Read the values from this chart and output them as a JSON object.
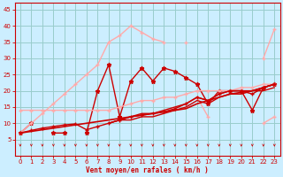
{
  "xlabel": "Vent moyen/en rafales ( km/h )",
  "bg_color": "#cceeff",
  "grid_color": "#99cccc",
  "line_color_dark": "#cc0000",
  "line_color_med": "#ff6666",
  "line_color_light": "#ffaaaa",
  "x": [
    0,
    1,
    2,
    3,
    4,
    5,
    6,
    7,
    8,
    9,
    10,
    11,
    12,
    13,
    14,
    15,
    16,
    17,
    18,
    19,
    20,
    21,
    22,
    23
  ],
  "ylim": [
    0,
    47
  ],
  "xlim": [
    -0.5,
    23.5
  ],
  "yticks": [
    5,
    10,
    15,
    20,
    25,
    30,
    35,
    40,
    45
  ],
  "xticks": [
    0,
    1,
    2,
    3,
    4,
    5,
    6,
    7,
    8,
    9,
    10,
    11,
    12,
    13,
    14,
    15,
    16,
    17,
    18,
    19,
    20,
    21,
    22,
    23
  ],
  "series": [
    {
      "y": [
        7,
        10,
        null,
        7,
        7,
        null,
        7,
        20,
        28,
        12,
        23,
        27,
        23,
        27,
        26,
        24,
        22,
        16,
        20,
        20,
        20,
        14,
        21,
        22
      ],
      "color": "#cc0000",
      "lw": 1.0,
      "marker": "*",
      "ms": 3.5
    },
    {
      "y": [
        7,
        10,
        13,
        16,
        19,
        22,
        25,
        28,
        35,
        37,
        40,
        38,
        36,
        35,
        null,
        null,
        null,
        null,
        null,
        null,
        null,
        null,
        null,
        null
      ],
      "color": "#ffaaaa",
      "lw": 1.0,
      "marker": "+",
      "ms": 3
    },
    {
      "y": [
        null,
        null,
        null,
        null,
        null,
        null,
        null,
        null,
        null,
        null,
        null,
        null,
        null,
        null,
        null,
        35,
        null,
        null,
        null,
        null,
        null,
        null,
        30,
        39
      ],
      "color": "#ffaaaa",
      "lw": 1.0,
      "marker": "+",
      "ms": 3
    },
    {
      "y": [
        14,
        14,
        14,
        14,
        14,
        14,
        14,
        14,
        14,
        15,
        16,
        17,
        17,
        18,
        18,
        19,
        20,
        20,
        20,
        20,
        21,
        21,
        22,
        22
      ],
      "color": "#ffaaaa",
      "lw": 1.0,
      "marker": "+",
      "ms": 3
    },
    {
      "y": [
        null,
        null,
        null,
        null,
        null,
        null,
        null,
        null,
        null,
        null,
        null,
        null,
        null,
        null,
        null,
        null,
        18,
        12,
        null,
        null,
        null,
        null,
        10,
        12
      ],
      "color": "#ffaaaa",
      "lw": 1.0,
      "marker": "+",
      "ms": 3
    },
    {
      "y": [
        7,
        7.5,
        8,
        8.5,
        9,
        9.5,
        10,
        10.5,
        11,
        11.5,
        12,
        12.5,
        13,
        13.5,
        14,
        14.5,
        16,
        17,
        18,
        19,
        19.5,
        20,
        21,
        22
      ],
      "color": "#cc0000",
      "lw": 1.2,
      "marker": null,
      "ms": 0
    },
    {
      "y": [
        7,
        7.8,
        8.5,
        9,
        9.5,
        9.8,
        8,
        9,
        10,
        11,
        12,
        12.5,
        13,
        13.5,
        14.5,
        16,
        18,
        17,
        19,
        20,
        20,
        19,
        21,
        22
      ],
      "color": "#cc0000",
      "lw": 1.0,
      "marker": "+",
      "ms": 2.5
    },
    {
      "y": [
        7,
        null,
        null,
        null,
        null,
        null,
        null,
        null,
        10,
        11,
        12,
        13,
        13,
        14,
        15,
        16,
        18,
        17,
        19,
        20,
        20,
        20,
        21,
        22
      ],
      "color": "#cc0000",
      "lw": 1.0,
      "marker": null,
      "ms": 0
    },
    {
      "y": [
        7,
        null,
        null,
        null,
        null,
        null,
        null,
        null,
        10,
        11,
        11,
        12,
        12,
        13,
        14,
        15,
        17,
        16,
        18,
        19,
        19,
        20,
        20,
        21
      ],
      "color": "#cc0000",
      "lw": 1.0,
      "marker": null,
      "ms": 0
    }
  ],
  "sym_y": 3.2,
  "sym_color": "#cc0000"
}
